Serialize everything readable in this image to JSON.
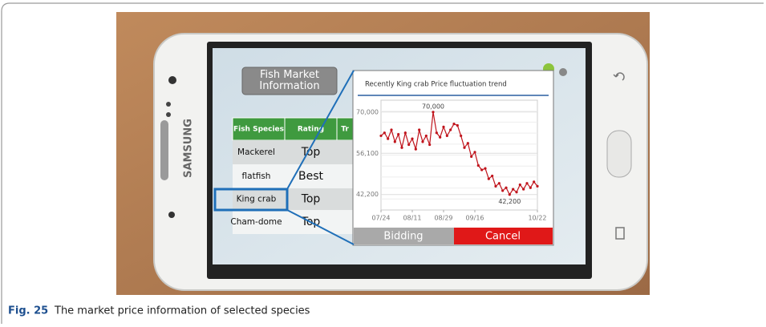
{
  "figure": {
    "label": "Fig. 25",
    "caption": "The market price information of selected species"
  },
  "phone": {
    "brand": "SAMSUNG"
  },
  "app": {
    "title": "Fish Market Information",
    "table": {
      "headers": [
        "Fish Species",
        "Rating",
        "Tr"
      ],
      "rows": [
        [
          "Mackerel",
          "Top"
        ],
        [
          "flatfish",
          "Best"
        ],
        [
          "King crab",
          "Top"
        ],
        [
          "Cham-dome",
          "Top"
        ]
      ]
    },
    "popup": {
      "buttons": [
        "Bidding",
        "Cancel"
      ],
      "chart": {
        "type": "line",
        "title": "Recently King crab Price fluctuation trend",
        "color": "#c0141c",
        "x": [
          0,
          2,
          4,
          6,
          8,
          10,
          12,
          14,
          16,
          18,
          20,
          22,
          24,
          26,
          28,
          30,
          32,
          34,
          36,
          38,
          40,
          42,
          44,
          46,
          48,
          50,
          52,
          54,
          56,
          58,
          60,
          62,
          64,
          66,
          68,
          70,
          72,
          74,
          76,
          78,
          80,
          82,
          84,
          86,
          88,
          90
        ],
        "values": [
          62000,
          63000,
          61000,
          64000,
          60000,
          62500,
          58000,
          63000,
          59000,
          61000,
          57500,
          64000,
          60000,
          62000,
          59000,
          70000,
          63000,
          61500,
          65000,
          62000,
          64000,
          66000,
          65500,
          62000,
          58000,
          59500,
          55000,
          56500,
          52000,
          50500,
          51000,
          47500,
          48500,
          45000,
          46000,
          43500,
          44500,
          42200,
          44000,
          43000,
          45500,
          44000,
          46000,
          44500,
          46500,
          45000
        ],
        "xlim": [
          0,
          90
        ],
        "xticks": [
          {
            "value": 0,
            "label": "07/24"
          },
          {
            "value": 18,
            "label": "08/11"
          },
          {
            "value": 36,
            "label": "08/29"
          },
          {
            "value": 54,
            "label": "09/16"
          },
          {
            "value": 90,
            "label": "10/22"
          }
        ],
        "ylim": [
          37000,
          74000
        ],
        "yticks": [
          {
            "value": 42200,
            "label": "42,200"
          },
          {
            "value": 56100,
            "label": "56,100"
          },
          {
            "value": 70000,
            "label": "70,000"
          }
        ],
        "grid": true,
        "annotations": [
          {
            "text": "70,000",
            "x": 30,
            "y": 70000
          },
          {
            "text": "42,200",
            "x": 74,
            "y": 42200
          }
        ]
      }
    }
  }
}
